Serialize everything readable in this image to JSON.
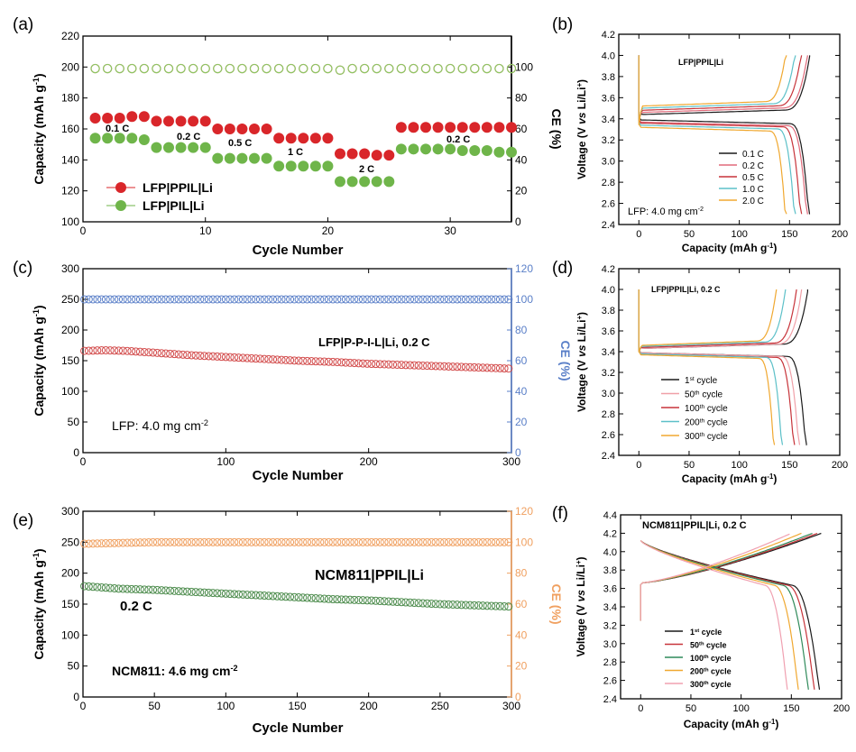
{
  "figure": {
    "panels": {
      "a": {
        "letter": "(a)"
      },
      "b": {
        "letter": "(b)"
      },
      "c": {
        "letter": "(c)"
      },
      "d": {
        "letter": "(d)"
      },
      "e": {
        "letter": "(e)"
      },
      "f": {
        "letter": "(f)"
      }
    }
  },
  "chart_data": [
    {
      "id": "a",
      "type": "scatter",
      "title": "",
      "xlabel": "Cycle Number",
      "ylabel": "Capacity (mAh g⁻¹)",
      "y2label": "CE (%)",
      "xlim": [
        0,
        35
      ],
      "ylim": [
        100,
        220
      ],
      "y2lim": [
        0,
        120
      ],
      "xticks": [
        0,
        10,
        20,
        30
      ],
      "yticks": [
        100,
        120,
        140,
        160,
        180,
        200,
        220
      ],
      "y2ticks": [
        0,
        20,
        40,
        60,
        80,
        100
      ],
      "legend": [
        "LFP|PPIL|Li",
        "LFP|PIL|Li"
      ],
      "rate_labels": [
        "0.1 C",
        "0.2 C",
        "0.5 C",
        "1 C",
        "2 C",
        "0.2 C"
      ],
      "colors": {
        "ppil": "#d9262a",
        "pil": "#6fb54a",
        "ce_ppil": "#e87878",
        "ce_pil": "#8cc864"
      },
      "series": [
        {
          "name": "LFP|PPIL|Li",
          "axis": "left",
          "x": [
            1,
            2,
            3,
            4,
            5,
            6,
            7,
            8,
            9,
            10,
            11,
            12,
            13,
            14,
            15,
            16,
            17,
            18,
            19,
            20,
            21,
            22,
            23,
            24,
            25,
            26,
            27,
            28,
            29,
            30,
            31,
            32,
            33,
            34,
            35
          ],
          "values": [
            167,
            167,
            167,
            168,
            168,
            165,
            165,
            165,
            165,
            165,
            160,
            160,
            160,
            160,
            160,
            154,
            154,
            154,
            154,
            154,
            144,
            144,
            144,
            143,
            143,
            161,
            161,
            161,
            161,
            161,
            161,
            161,
            161,
            161,
            161
          ]
        },
        {
          "name": "LFP|PIL|Li",
          "axis": "left",
          "x": [
            1,
            2,
            3,
            4,
            5,
            6,
            7,
            8,
            9,
            10,
            11,
            12,
            13,
            14,
            15,
            16,
            17,
            18,
            19,
            20,
            21,
            22,
            23,
            24,
            25,
            26,
            27,
            28,
            29,
            30,
            31,
            32,
            33,
            34,
            35
          ],
          "values": [
            154,
            154,
            154,
            154,
            153,
            148,
            148,
            148,
            148,
            148,
            141,
            141,
            141,
            141,
            141,
            136,
            136,
            136,
            136,
            136,
            126,
            126,
            126,
            126,
            126,
            147,
            147,
            147,
            147,
            147,
            146,
            146,
            146,
            145,
            145
          ]
        },
        {
          "name": "CE LFP|PPIL|Li",
          "axis": "right",
          "x": [
            1,
            2,
            3,
            4,
            5,
            6,
            7,
            8,
            9,
            10,
            11,
            12,
            13,
            14,
            15,
            16,
            17,
            18,
            19,
            20,
            21,
            22,
            23,
            24,
            25,
            26,
            27,
            28,
            29,
            30,
            31,
            32,
            33,
            34,
            35
          ],
          "values": [
            99,
            99,
            99,
            99,
            99,
            99,
            99,
            99,
            99,
            99,
            99,
            99,
            99,
            99,
            99,
            99,
            99,
            99,
            99,
            99,
            98,
            99,
            99,
            99,
            99,
            99,
            99,
            99,
            99,
            99,
            99,
            99,
            99,
            99,
            99
          ]
        },
        {
          "name": "CE LFP|PIL|Li",
          "axis": "right",
          "x": [
            1,
            2,
            3,
            4,
            5,
            6,
            7,
            8,
            9,
            10,
            11,
            12,
            13,
            14,
            15,
            16,
            17,
            18,
            19,
            20,
            21,
            22,
            23,
            24,
            25,
            26,
            27,
            28,
            29,
            30,
            31,
            32,
            33,
            34,
            35
          ],
          "values": [
            99,
            99,
            99,
            99,
            99,
            99,
            99,
            99,
            99,
            99,
            99,
            99,
            99,
            99,
            99,
            99,
            99,
            99,
            99,
            99,
            98,
            99,
            99,
            99,
            99,
            99,
            99,
            99,
            99,
            99,
            99,
            99,
            99,
            99,
            99
          ]
        }
      ]
    },
    {
      "id": "b",
      "type": "line",
      "xlabel": "Capacity (mAh g⁻¹)",
      "ylabel": "Voltage (V vs Li/Li⁺)",
      "xlim": [
        -20,
        200
      ],
      "ylim": [
        2.4,
        4.2
      ],
      "xticks": [
        0,
        50,
        100,
        150,
        200
      ],
      "yticks": [
        2.4,
        2.6,
        2.8,
        3.0,
        3.2,
        3.4,
        3.6,
        3.8,
        4.0,
        4.2
      ],
      "annotation": "LFP|PPIL|Li",
      "note": "LFP: 4.0 mg cm⁻²",
      "series": [
        {
          "name": "0.1 C",
          "color": "#1a1a1a",
          "charge_cap": 170,
          "discharge_cap": 170,
          "v_charge": 3.44,
          "v_discharge": 3.39
        },
        {
          "name": "0.2 C",
          "color": "#e06a7a",
          "charge_cap": 168,
          "discharge_cap": 168,
          "v_charge": 3.46,
          "v_discharge": 3.37
        },
        {
          "name": "0.5 C",
          "color": "#c7343a",
          "charge_cap": 162,
          "discharge_cap": 162,
          "v_charge": 3.48,
          "v_discharge": 3.36
        },
        {
          "name": "1.0 C",
          "color": "#5cc0c8",
          "charge_cap": 156,
          "discharge_cap": 156,
          "v_charge": 3.5,
          "v_discharge": 3.34
        },
        {
          "name": "2.0 C",
          "color": "#f0a830",
          "charge_cap": 147,
          "discharge_cap": 147,
          "v_charge": 3.52,
          "v_discharge": 3.32
        }
      ]
    },
    {
      "id": "c",
      "type": "scatter",
      "xlabel": "Cycle Number",
      "ylabel": "Capacity (mAh g⁻¹)",
      "y2label": "CE (%)",
      "xlim": [
        0,
        300
      ],
      "ylim": [
        0,
        300
      ],
      "y2lim": [
        0,
        120
      ],
      "xticks": [
        0,
        100,
        200,
        300
      ],
      "yticks": [
        0,
        50,
        100,
        150,
        200,
        250,
        300
      ],
      "y2ticks": [
        0,
        20,
        40,
        60,
        80,
        100,
        120
      ],
      "annotation": "LFP|P-P-I-L|Li, 0.2 C",
      "note": "LFP: 4.0 mg cm⁻²",
      "colors": {
        "capacity": "#d24a4a",
        "ce": "#5a7fc8"
      },
      "series": [
        {
          "name": "Capacity",
          "axis": "left",
          "x": [
            1,
            15,
            30,
            50,
            75,
            100,
            125,
            150,
            175,
            200,
            225,
            250,
            275,
            300
          ],
          "values": [
            166,
            167,
            166,
            163,
            159,
            156,
            153,
            150,
            148,
            145,
            143,
            141,
            139,
            137
          ]
        },
        {
          "name": "CE",
          "axis": "right",
          "x": [
            1,
            50,
            100,
            150,
            200,
            250,
            300
          ],
          "values": [
            100,
            100,
            100,
            100,
            100,
            100,
            100
          ]
        }
      ]
    },
    {
      "id": "d",
      "type": "line",
      "xlabel": "Capacity (mAh g⁻¹)",
      "ylabel": "Voltage (V vs Li/Li⁺)",
      "xlim": [
        -20,
        200
      ],
      "ylim": [
        2.4,
        4.2
      ],
      "xticks": [
        0,
        50,
        100,
        150,
        200
      ],
      "yticks": [
        2.4,
        2.6,
        2.8,
        3.0,
        3.2,
        3.4,
        3.6,
        3.8,
        4.0,
        4.2
      ],
      "annotation": "LFP|PPIL|Li, 0.2 C",
      "series": [
        {
          "name": "1st cycle",
          "sup": "st",
          "base": "1",
          "color": "#1a1a1a",
          "charge_cap": 168,
          "discharge_cap": 167,
          "v_charge": 3.43,
          "v_discharge": 3.39
        },
        {
          "name": "50th cycle",
          "sup": "th",
          "base": "50",
          "color": "#f0a0a8",
          "charge_cap": 162,
          "discharge_cap": 160,
          "v_charge": 3.43,
          "v_discharge": 3.39
        },
        {
          "name": "100th cycle",
          "sup": "th",
          "base": "100",
          "color": "#c7343a",
          "charge_cap": 157,
          "discharge_cap": 155,
          "v_charge": 3.44,
          "v_discharge": 3.38
        },
        {
          "name": "200th cycle",
          "sup": "th",
          "base": "200",
          "color": "#5cc0c8",
          "charge_cap": 146,
          "discharge_cap": 143,
          "v_charge": 3.45,
          "v_discharge": 3.38
        },
        {
          "name": "300th cycle",
          "sup": "th",
          "base": "300",
          "color": "#f0a830",
          "charge_cap": 137,
          "discharge_cap": 135,
          "v_charge": 3.46,
          "v_discharge": 3.37
        }
      ]
    },
    {
      "id": "e",
      "type": "scatter",
      "xlabel": "Cycle Number",
      "ylabel": "Capacity (mAh g⁻¹)",
      "y2label": "CE (%)",
      "xlim": [
        0,
        300
      ],
      "ylim": [
        0,
        300
      ],
      "y2lim": [
        0,
        120
      ],
      "xticks": [
        0,
        50,
        100,
        150,
        200,
        250,
        300
      ],
      "yticks": [
        0,
        50,
        100,
        150,
        200,
        250,
        300
      ],
      "y2ticks": [
        0,
        20,
        40,
        60,
        80,
        100,
        120
      ],
      "annotation": "NCM811|PPIL|Li",
      "rate": "0.2 C",
      "note": "NCM811: 4.6 mg cm⁻²",
      "colors": {
        "capacity": "#4a8a4a",
        "ce": "#f0a060"
      },
      "series": [
        {
          "name": "Capacity",
          "axis": "left",
          "x": [
            1,
            25,
            50,
            75,
            100,
            125,
            150,
            175,
            200,
            225,
            250,
            275,
            300
          ],
          "values": [
            179,
            175,
            173,
            170,
            167,
            164,
            161,
            158,
            156,
            153,
            150,
            148,
            146
          ]
        },
        {
          "name": "CE",
          "axis": "right",
          "x": [
            1,
            50,
            100,
            150,
            200,
            250,
            300
          ],
          "values": [
            99,
            100,
            100,
            100,
            100,
            100,
            100
          ]
        }
      ]
    },
    {
      "id": "f",
      "type": "line",
      "xlabel": "Capacity (mAh g⁻¹)",
      "ylabel": "Voltage (V vs Li/Li⁺)",
      "xlim": [
        -20,
        200
      ],
      "ylim": [
        2.4,
        4.4
      ],
      "xticks": [
        0,
        50,
        100,
        150,
        200
      ],
      "yticks": [
        2.4,
        2.6,
        2.8,
        3.0,
        3.2,
        3.4,
        3.6,
        3.8,
        4.0,
        4.2,
        4.4
      ],
      "annotation": "NCM811|PPIL|Li, 0.2 C",
      "series": [
        {
          "name": "1st cycle",
          "sup": "st",
          "base": "1",
          "color": "#1a1a1a",
          "charge_cap": 180,
          "discharge_cap": 178
        },
        {
          "name": "50th cycle",
          "sup": "th",
          "base": "50",
          "color": "#c7343a",
          "charge_cap": 176,
          "discharge_cap": 173
        },
        {
          "name": "100th cycle",
          "sup": "th",
          "base": "100",
          "color": "#2f8a5a",
          "charge_cap": 171,
          "discharge_cap": 167
        },
        {
          "name": "200th cycle",
          "sup": "th",
          "base": "200",
          "color": "#f0a830",
          "charge_cap": 160,
          "discharge_cap": 157
        },
        {
          "name": "300th cycle",
          "sup": "th",
          "base": "300",
          "color": "#f0a0b0",
          "charge_cap": 150,
          "discharge_cap": 146
        }
      ]
    }
  ]
}
